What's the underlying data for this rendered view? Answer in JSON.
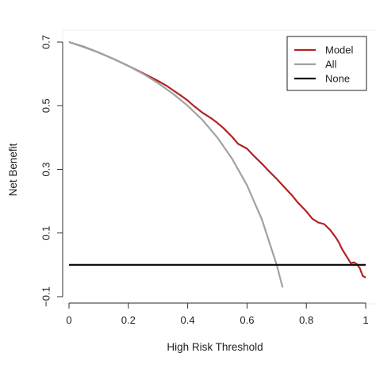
{
  "chart_data": {
    "type": "line",
    "title": "",
    "xlabel": "High Risk Threshold",
    "ylabel": "Net Benefit",
    "xlim": [
      0,
      1
    ],
    "ylim": [
      -0.1,
      0.7
    ],
    "xticks": [
      0,
      0.2,
      0.4,
      0.6,
      0.8,
      1
    ],
    "xtick_labels": [
      "0",
      "0.2",
      "0.4",
      "0.6",
      "0.8",
      "1"
    ],
    "yticks": [
      -0.1,
      0.1,
      0.3,
      0.5,
      0.7
    ],
    "ytick_labels": [
      "−0.1",
      "0.1",
      "0.3",
      "0.5",
      "0.7"
    ],
    "grid": false,
    "legend_position": "top-right",
    "series": [
      {
        "name": "Model",
        "color": "#b22222",
        "x": [
          0,
          0.05,
          0.1,
          0.15,
          0.2,
          0.25,
          0.3,
          0.33,
          0.35,
          0.38,
          0.4,
          0.42,
          0.45,
          0.48,
          0.5,
          0.52,
          0.55,
          0.57,
          0.6,
          0.62,
          0.65,
          0.67,
          0.7,
          0.72,
          0.75,
          0.77,
          0.8,
          0.82,
          0.84,
          0.86,
          0.88,
          0.9,
          0.91,
          0.92,
          0.93,
          0.94,
          0.95,
          0.96,
          0.97,
          0.98,
          0.99,
          1.0
        ],
        "values": [
          0.7,
          0.685,
          0.667,
          0.647,
          0.625,
          0.602,
          0.578,
          0.562,
          0.549,
          0.53,
          0.516,
          0.5,
          0.478,
          0.46,
          0.446,
          0.43,
          0.402,
          0.38,
          0.365,
          0.345,
          0.318,
          0.298,
          0.27,
          0.25,
          0.22,
          0.197,
          0.168,
          0.145,
          0.133,
          0.128,
          0.11,
          0.085,
          0.07,
          0.05,
          0.035,
          0.02,
          0.005,
          0.008,
          0.002,
          -0.01,
          -0.035,
          -0.04
        ]
      },
      {
        "name": "All",
        "color": "#9ea3a3",
        "x": [
          0,
          0.05,
          0.1,
          0.15,
          0.2,
          0.25,
          0.3,
          0.35,
          0.4,
          0.45,
          0.5,
          0.55,
          0.6,
          0.65,
          0.7,
          0.72
        ],
        "values": [
          0.7,
          0.684,
          0.667,
          0.647,
          0.625,
          0.6,
          0.571,
          0.538,
          0.5,
          0.455,
          0.4,
          0.333,
          0.25,
          0.143,
          0.0,
          -0.071
        ]
      },
      {
        "name": "None",
        "color": "#111111",
        "x": [
          0,
          1
        ],
        "values": [
          0,
          0
        ]
      }
    ]
  }
}
